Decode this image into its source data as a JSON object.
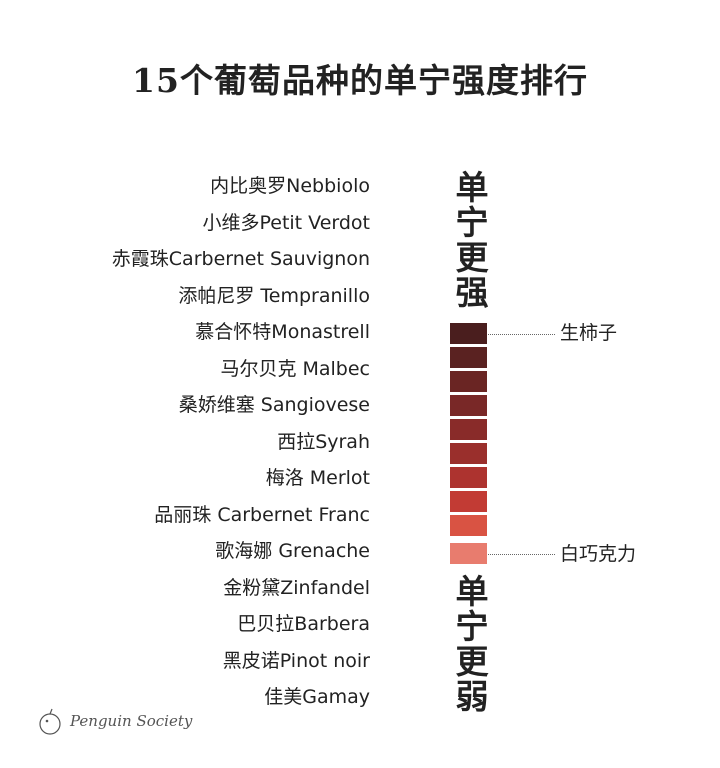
{
  "title": "15个葡萄品种的单宁强度排行",
  "grapes": [
    "内比奥罗Nebbiolo",
    "小维多Petit Verdot",
    "赤霞珠Carbernet Sauvignon",
    "添帕尼罗 Tempranillo",
    "慕合怀特Monastrell",
    "马尔贝克 Malbec",
    "桑娇维塞 Sangiovese",
    "西拉Syrah",
    "梅洛 Merlot",
    "品丽珠 Carbernet Franc",
    "歌海娜 Grenache",
    "金粉黛Zinfandel",
    "巴贝拉Barbera",
    "黑皮诺Pinot noir",
    "佳美Gamay"
  ],
  "strong_label": "单宁更强",
  "weak_label": "单宁更弱",
  "annotations": {
    "top": "生柿子",
    "bottom": "白巧克力"
  },
  "watermark": "Penguin Society"
}
